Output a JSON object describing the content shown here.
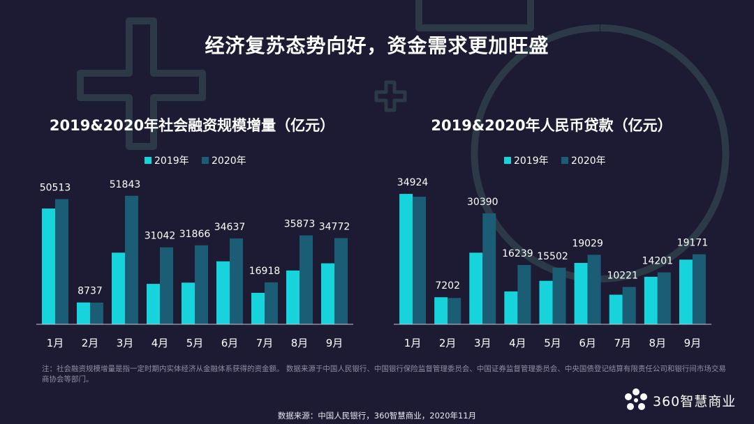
{
  "title": "经济复苏态势向好，资金需求更加旺盛",
  "colors": {
    "series2019": "#17d3dc",
    "series2020": "#1a5d74",
    "background": "#1d1b33",
    "axis": "#c9c9d6"
  },
  "chart_data": [
    {
      "type": "bar",
      "title": "2019&2020年社会融资规模增量（亿元）",
      "categories": [
        "1月",
        "2月",
        "3月",
        "4月",
        "5月",
        "6月",
        "7月",
        "8月",
        "9月"
      ],
      "series": [
        {
          "name": "2019年",
          "values": [
            46700,
            8800,
            28900,
            16300,
            16800,
            25400,
            12700,
            21700,
            24600
          ]
        },
        {
          "name": "2020年",
          "values": [
            50513,
            8737,
            51843,
            31042,
            31866,
            34637,
            16918,
            35873,
            34772
          ]
        }
      ],
      "labels": [
        "50513",
        "8737",
        "51843",
        "31042",
        "31866",
        "34637",
        "16918",
        "35873",
        "34772"
      ],
      "ylim": [
        0,
        56000
      ],
      "legend": "top-left",
      "xlabel": "",
      "ylabel": ""
    },
    {
      "type": "bar",
      "title": "2019&2020年人民币贷款（亿元）",
      "categories": [
        "1月",
        "2月",
        "3月",
        "4月",
        "5月",
        "6月",
        "7月",
        "8月",
        "9月"
      ],
      "series": [
        {
          "name": "2019年",
          "values": [
            35700,
            7400,
            19600,
            9000,
            11900,
            16800,
            8100,
            13000,
            17700
          ]
        },
        {
          "name": "2020年",
          "values": [
            34924,
            7202,
            30390,
            16239,
            15502,
            19029,
            10221,
            14201,
            19171
          ]
        }
      ],
      "labels": [
        "34924",
        "7202",
        "30390",
        "16239",
        "15502",
        "19029",
        "10221",
        "14201",
        "19171"
      ],
      "ylim": [
        0,
        38000
      ],
      "legend": "top-left",
      "xlabel": "",
      "ylabel": ""
    }
  ],
  "footnote": "注：社会融资规模增量是指一定时期内实体经济从金融体系获得的资金额。  数据来源于中国人民银行、中国银行保险监督管理委员会、中国证券监督管理委员会、中央国债登记结算有限责任公司和银行间市场交易商协会等部门。",
  "source": "数据来源：中国人民银行，360智慧商业，2020年11月",
  "logo": {
    "text": "360智慧商业"
  }
}
